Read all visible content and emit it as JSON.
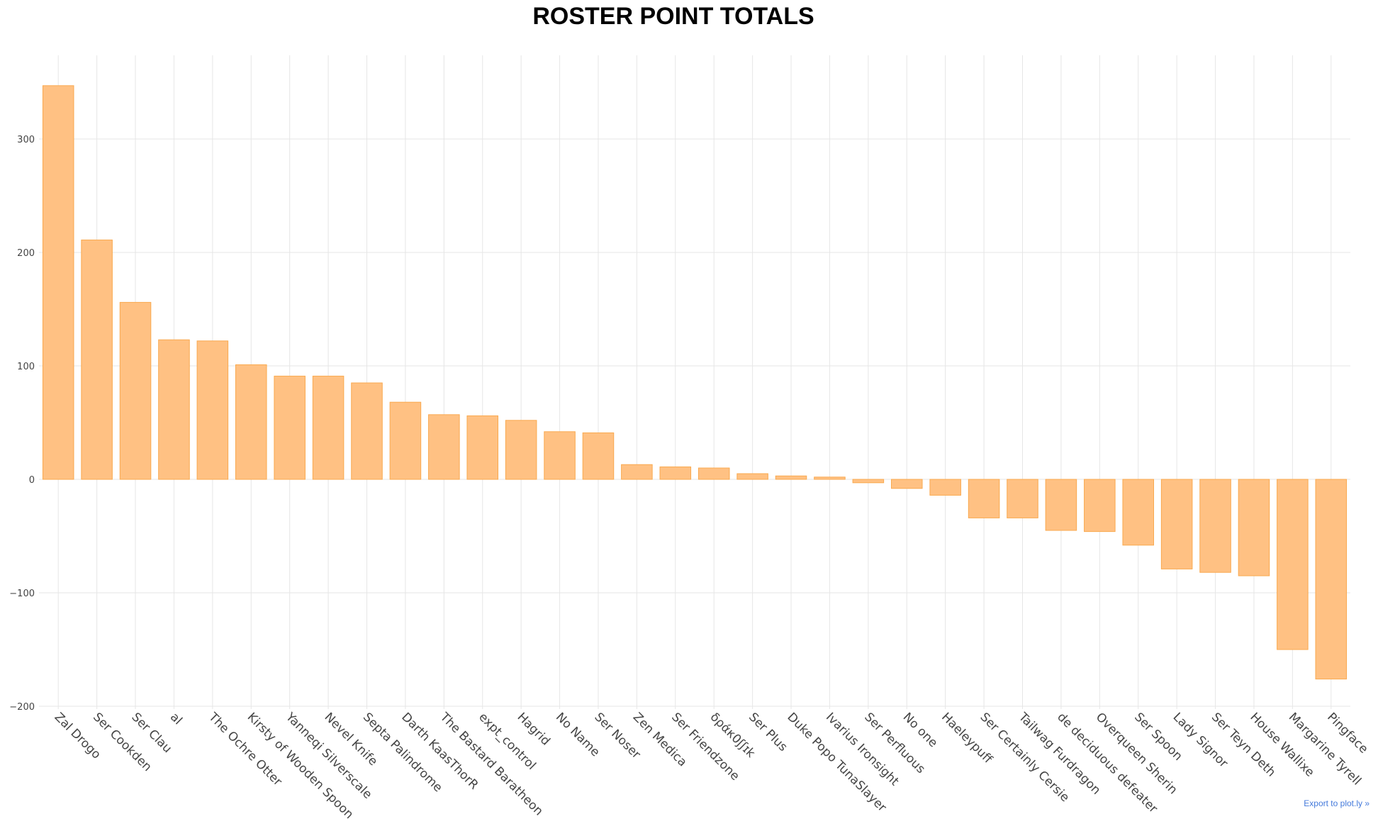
{
  "chart_data": {
    "type": "bar",
    "title": "ROSTER POINT TOTALS",
    "xlabel": "",
    "ylabel": "",
    "ylim": [
      -200,
      350
    ],
    "yticks": [
      -200,
      -100,
      0,
      100,
      200,
      300
    ],
    "grid": true,
    "bar_color": "#ffc183",
    "bar_edge_color": "#f9a94f",
    "categories": [
      "Zal Drogo",
      "Ser Cookden",
      "Ser Clau",
      "al",
      "The Ochre Otter",
      "Kirsty of Wooden Spoon",
      "Yanneqi Silverscale",
      "Nevel Knife",
      "Septa Palindrome",
      "Darth KaasThorR",
      "The Bastard Baratheon",
      "expt_control",
      "Hagrid",
      "No Name",
      "Ser Noser",
      "Zen Medica",
      "Ser Friendzone",
      "δράκ0ʃʃɪk",
      "Ser Plus",
      "Duke Popo TunaSlayer",
      "Ivarius Ironsight",
      "Ser Perfluous",
      "No one",
      "Haeleypuff",
      "Ser Certainly Cersie",
      "Tailwag Furdragon",
      "de deciduous defeater",
      "Overqueen Sherin",
      "Ser Spoon",
      "Lady Signor",
      "Ser Teyn Deth",
      "House Wallixe",
      "Margarine Tyrell",
      "Pingface"
    ],
    "values": [
      347,
      211,
      156,
      123,
      122,
      101,
      91,
      91,
      85,
      68,
      57,
      56,
      52,
      42,
      41,
      13,
      11,
      10,
      5,
      3,
      2,
      -3,
      -8,
      -14,
      -34,
      -34,
      -45,
      -46,
      -58,
      -79,
      -82,
      -85,
      -150,
      -176
    ]
  },
  "export_link": "Export to plot.ly »"
}
